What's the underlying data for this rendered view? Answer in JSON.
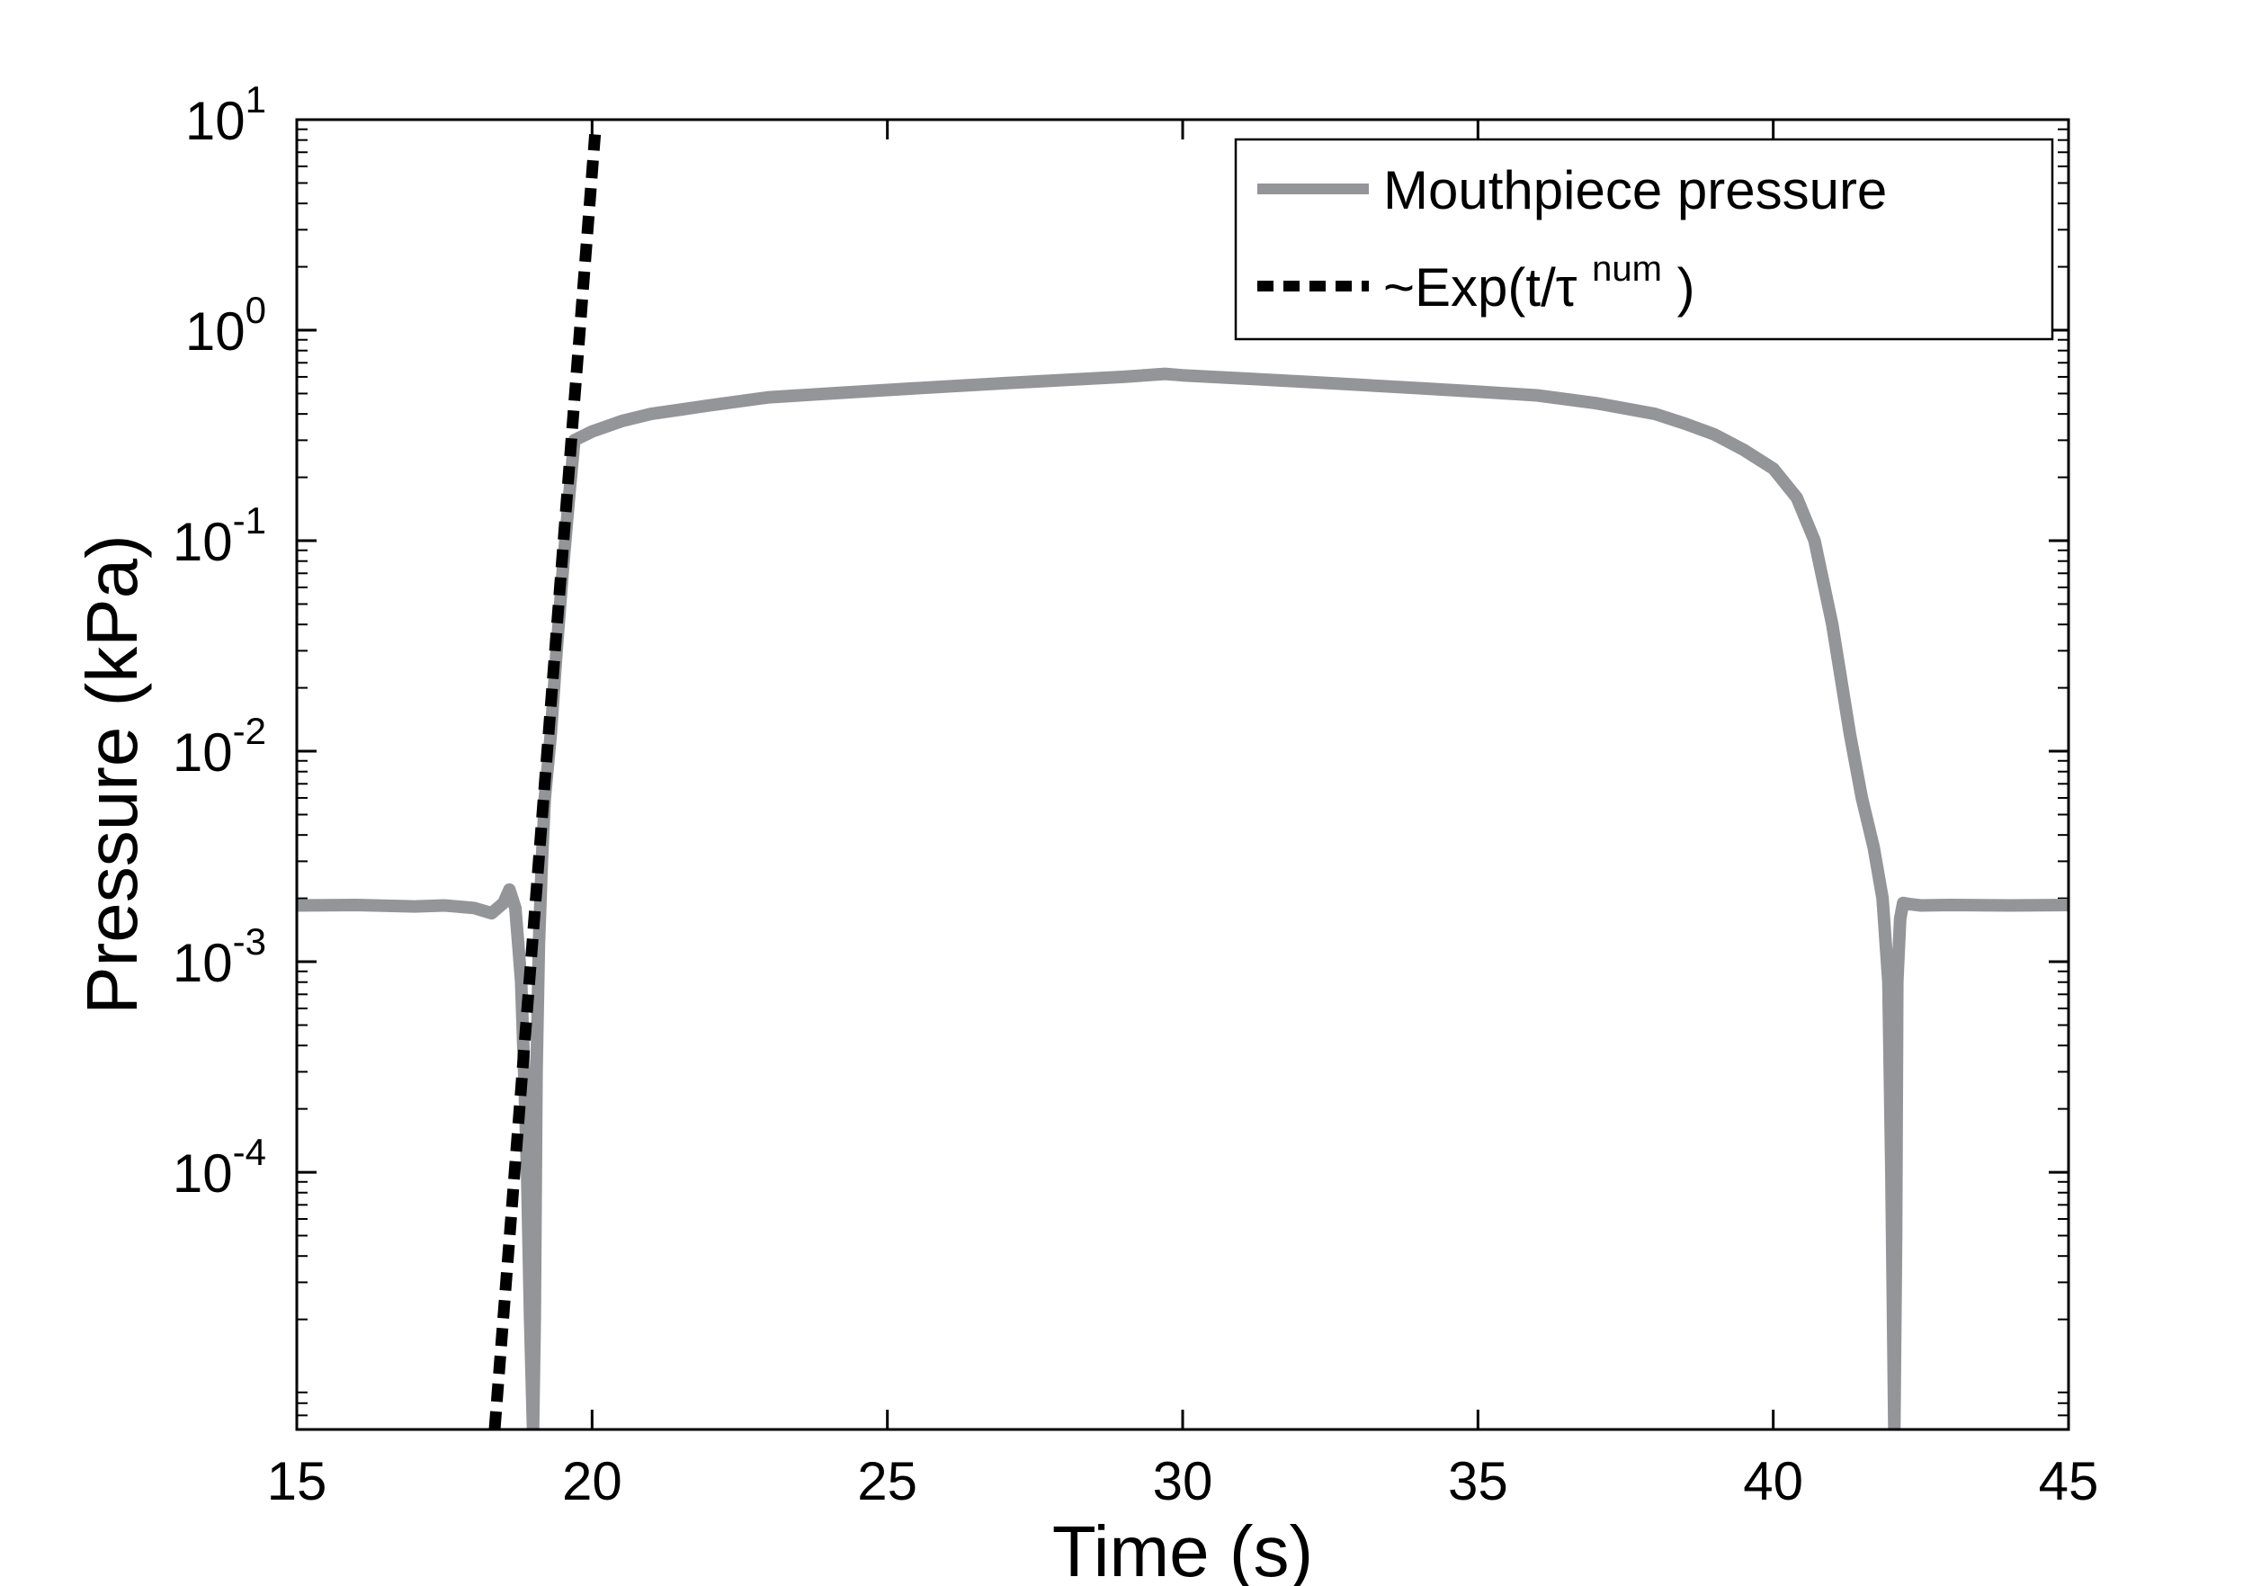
{
  "chart_data": {
    "type": "line",
    "xlabel": "Time (s)",
    "ylabel": "Pressure (kPa)",
    "xlim": [
      15,
      45
    ],
    "ylim": [
      6e-06,
      10
    ],
    "yscale": "log",
    "grid": false,
    "legend_position": "top-right",
    "x_ticks": [
      15,
      20,
      25,
      30,
      35,
      40,
      45
    ],
    "y_ticks": [
      {
        "value": 0.0001,
        "base": "10",
        "exp": "-4"
      },
      {
        "value": 0.001,
        "base": "10",
        "exp": "-3"
      },
      {
        "value": 0.01,
        "base": "10",
        "exp": "-2"
      },
      {
        "value": 0.1,
        "base": "10",
        "exp": "-1"
      },
      {
        "value": 1,
        "base": "10",
        "exp": "0"
      },
      {
        "value": 10,
        "base": "10",
        "exp": "1"
      }
    ],
    "series": [
      {
        "name": "Mouthpiece pressure",
        "color": "#939598",
        "style": "solid",
        "x": [
          15,
          16,
          17,
          17.5,
          18,
          18.3,
          18.5,
          18.6,
          18.7,
          18.75,
          18.8,
          18.85,
          18.9,
          18.95,
          19.0,
          19.03,
          19.06,
          19.1,
          19.15,
          19.2,
          19.3,
          19.4,
          19.5,
          19.6,
          19.7,
          20,
          20.5,
          21,
          22,
          23,
          24,
          25,
          26,
          27,
          28,
          29,
          29.7,
          30,
          31,
          32,
          33,
          34,
          35,
          36,
          37,
          38,
          38.5,
          39,
          39.5,
          40,
          40.4,
          40.7,
          41,
          41.3,
          41.5,
          41.7,
          41.85,
          41.95,
          42.0,
          42.05,
          42.08,
          42.1,
          42.15,
          42.2,
          42.3,
          42.5,
          43,
          44,
          45
        ],
        "y": [
          0.00185,
          0.00186,
          0.00183,
          0.00185,
          0.0018,
          0.0017,
          0.0019,
          0.0022,
          0.0018,
          0.0012,
          0.0008,
          0.0003,
          0.0001,
          2e-05,
          6e-06,
          2e-05,
          0.0003,
          0.0012,
          0.003,
          0.006,
          0.012,
          0.03,
          0.07,
          0.15,
          0.3,
          0.33,
          0.37,
          0.4,
          0.44,
          0.48,
          0.5,
          0.52,
          0.54,
          0.56,
          0.58,
          0.6,
          0.62,
          0.61,
          0.59,
          0.57,
          0.55,
          0.53,
          0.51,
          0.49,
          0.45,
          0.4,
          0.36,
          0.32,
          0.27,
          0.22,
          0.16,
          0.1,
          0.04,
          0.012,
          0.006,
          0.0035,
          0.002,
          0.0008,
          0.0001,
          6e-06,
          5e-05,
          0.0008,
          0.0016,
          0.0019,
          0.00188,
          0.00185,
          0.00186,
          0.00185,
          0.00186
        ]
      },
      {
        "name": "~Exp(t/τ",
        "superscript": "num",
        "closing": " )",
        "color": "#000000",
        "style": "dashed",
        "x": [
          18.35,
          20.05
        ],
        "y": [
          6e-06,
          8.5
        ]
      }
    ]
  }
}
